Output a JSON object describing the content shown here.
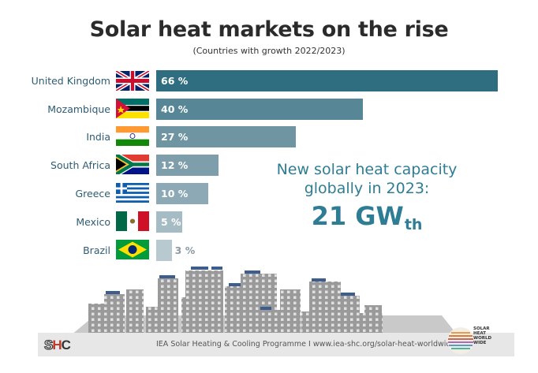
{
  "title": "Solar heat markets on the rise",
  "subtitle": "(Countries with growth 2022/2023)",
  "chart_data": {
    "type": "bar",
    "orientation": "horizontal",
    "title": "Solar heat markets on the rise",
    "subtitle": "(Countries with growth 2022/2023)",
    "categories": [
      "United Kingdom",
      "Mozambique",
      "India",
      "South Africa",
      "Greece",
      "Mexico",
      "Brazil"
    ],
    "values": [
      66,
      40,
      27,
      12,
      10,
      5,
      3
    ],
    "value_labels": [
      "66 %",
      "40 %",
      "27 %",
      "12 %",
      "10 %",
      "5 %",
      "3 %"
    ],
    "colors": [
      "#2e6e80",
      "#578797",
      "#6f95a3",
      "#7f9eab",
      "#8da9b5",
      "#a6bcc5",
      "#b8c9d0"
    ],
    "xlim": [
      0,
      66
    ]
  },
  "callout": {
    "line1": "New solar heat capacity",
    "line2": "globally in 2023:",
    "value": "21 GW",
    "subscript": "th"
  },
  "footer": {
    "logo_s": "S",
    "logo_h": "H",
    "logo_c": "C",
    "text": "IEA Solar Heating & Cooling Programme I www.iea-shc.org/solar-heat-worldwide",
    "badge_lines": [
      "SOLAR",
      "HEAT",
      "WORLD",
      "WIDE"
    ]
  }
}
